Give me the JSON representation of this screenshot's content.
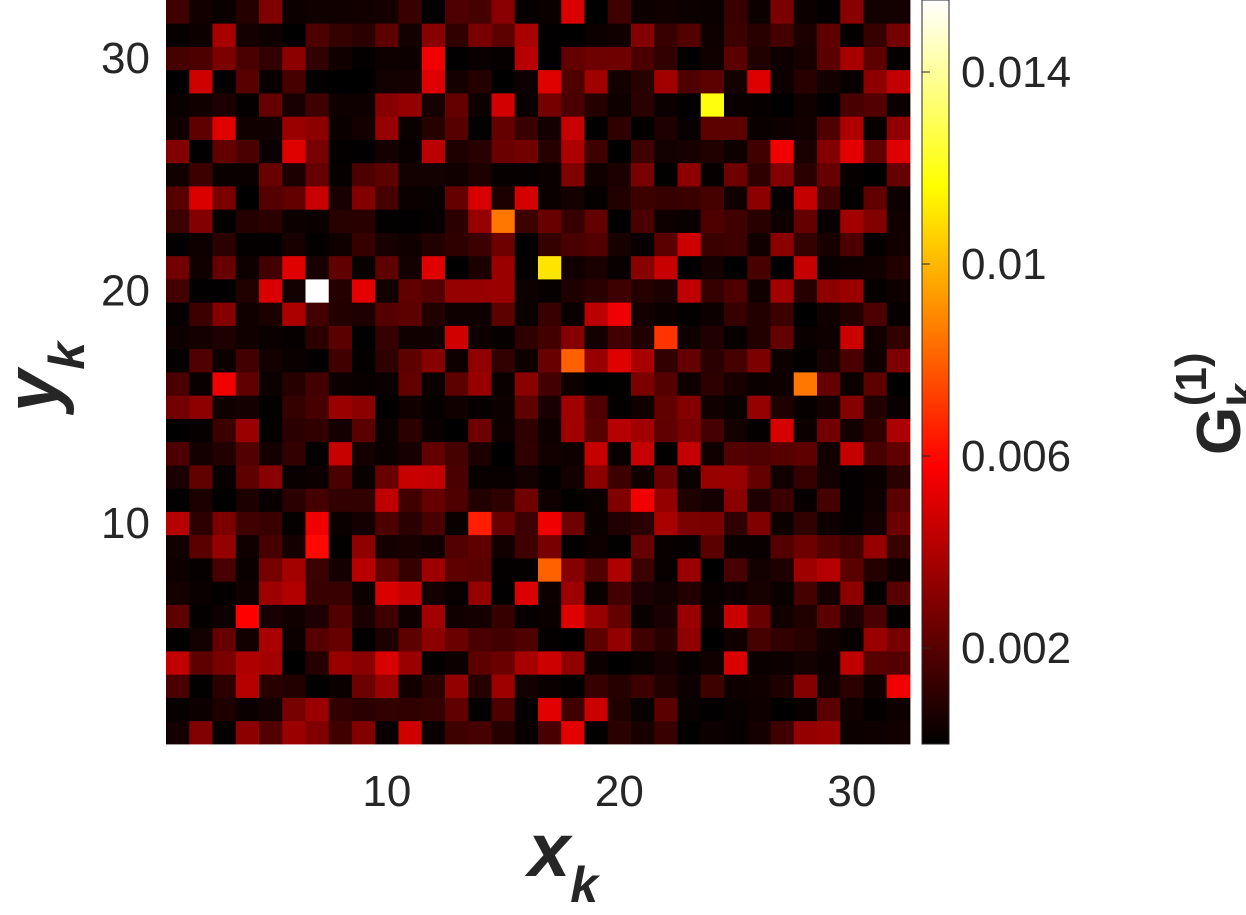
{
  "chart_data": {
    "type": "heatmap",
    "title": "",
    "xlabel": {
      "base": "x",
      "sub": "k"
    },
    "ylabel": {
      "base": "y",
      "sub": "k"
    },
    "colorbar_label": {
      "base": "G",
      "sub": "k",
      "sup": "(1)"
    },
    "colormap": "hot",
    "grid_size": 32,
    "xlim": [
      0.5,
      32.5
    ],
    "ylim": [
      0.5,
      32.5
    ],
    "x_ticks": [
      10,
      20,
      30
    ],
    "y_ticks": [
      10,
      20,
      30
    ],
    "x_tick_labels": [
      "10",
      "20",
      "30"
    ],
    "y_tick_labels": [
      "10",
      "20",
      "30"
    ],
    "clim": [
      0,
      0.0155
    ],
    "colorbar_ticks": [
      0.002,
      0.006,
      0.01,
      0.014
    ],
    "colorbar_tick_labels": [
      "0.002",
      "0.006",
      "0.01",
      "0.014"
    ],
    "grid": false,
    "seed": 73,
    "bright_cells": [
      {
        "x": 7,
        "y": 20,
        "value": 0.0155
      },
      {
        "x": 24,
        "y": 28,
        "value": 0.0118
      },
      {
        "x": 17,
        "y": 21,
        "value": 0.011
      },
      {
        "x": 15,
        "y": 23,
        "value": 0.0085
      },
      {
        "x": 28,
        "y": 16,
        "value": 0.0085
      },
      {
        "x": 17,
        "y": 8,
        "value": 0.008
      },
      {
        "x": 18,
        "y": 17,
        "value": 0.008
      },
      {
        "x": 22,
        "y": 18,
        "value": 0.007
      },
      {
        "x": 14,
        "y": 10,
        "value": 0.0065
      },
      {
        "x": 7,
        "y": 9,
        "value": 0.006
      },
      {
        "x": 4,
        "y": 6,
        "value": 0.0058
      },
      {
        "x": 21,
        "y": 11,
        "value": 0.0055
      },
      {
        "x": 12,
        "y": 30,
        "value": 0.0055
      },
      {
        "x": 20,
        "y": 19,
        "value": 0.0055
      },
      {
        "x": 32,
        "y": 3,
        "value": 0.0055
      },
      {
        "x": 16,
        "y": 7,
        "value": 0.005
      },
      {
        "x": 7,
        "y": 10,
        "value": 0.0055
      },
      {
        "x": 17,
        "y": 10,
        "value": 0.0055
      },
      {
        "x": 3,
        "y": 16,
        "value": 0.0055
      },
      {
        "x": 27,
        "y": 26,
        "value": 0.0055
      },
      {
        "x": 5,
        "y": 20,
        "value": 0.005
      },
      {
        "x": 2,
        "y": 24,
        "value": 0.005
      },
      {
        "x": 10,
        "y": 7,
        "value": 0.005
      },
      {
        "x": 11,
        "y": 7,
        "value": 0.0045
      },
      {
        "x": 23,
        "y": 13,
        "value": 0.0045
      },
      {
        "x": 19,
        "y": 13,
        "value": 0.0045
      },
      {
        "x": 12,
        "y": 12,
        "value": 0.0045
      },
      {
        "x": 30,
        "y": 13,
        "value": 0.0045
      },
      {
        "x": 28,
        "y": 24,
        "value": 0.0045
      }
    ]
  }
}
